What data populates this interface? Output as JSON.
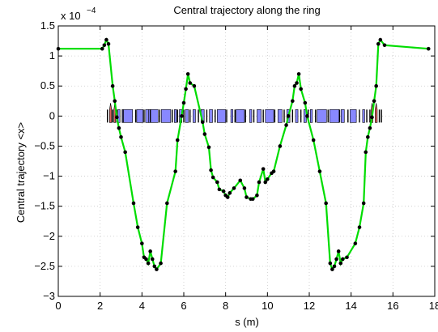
{
  "chart_data": {
    "type": "line",
    "title": "Central trajectory along the ring",
    "xlabel": "s (m)",
    "ylabel": "Central trajectory <x>",
    "y_multiplier_label": "x 10",
    "y_multiplier_exponent": "−4",
    "xlim": [
      0,
      18
    ],
    "ylim": [
      -3,
      1.5
    ],
    "grid": true,
    "x_ticks": [
      0,
      2,
      4,
      6,
      8,
      10,
      12,
      14,
      16,
      18
    ],
    "y_ticks": [
      -3,
      -2.5,
      -2,
      -1.5,
      -1,
      -0.5,
      0,
      0.5,
      1,
      1.5
    ],
    "x_tick_labels": [
      "0",
      "2",
      "4",
      "6",
      "8",
      "10",
      "12",
      "14",
      "16",
      "18"
    ],
    "y_tick_labels": [
      "−3",
      "−2.5",
      "−2",
      "−1.5",
      "−1",
      "−0.5",
      "0",
      "0.5",
      "1",
      "1.5"
    ],
    "series": [
      {
        "color": "#00dd00",
        "marker_color": "#000000",
        "x": [
          0.0,
          2.1,
          2.2,
          2.3,
          2.4,
          2.6,
          2.7,
          2.8,
          2.9,
          3.0,
          3.2,
          3.6,
          3.8,
          4.0,
          4.1,
          4.2,
          4.3,
          4.4,
          4.5,
          4.6,
          4.7,
          4.9,
          5.2,
          5.6,
          5.7,
          5.9,
          6.0,
          6.1,
          6.2,
          6.3,
          6.5,
          6.9,
          7.0,
          7.2,
          7.3,
          7.4,
          7.6,
          7.7,
          7.9,
          8.0,
          8.1,
          8.2,
          8.4,
          8.7,
          8.9,
          9.0,
          9.2,
          9.3,
          9.5,
          9.6,
          9.8,
          9.9,
          10.0,
          10.2,
          10.3,
          10.6,
          10.9,
          11.0,
          11.2,
          11.3,
          11.4,
          11.5,
          11.6,
          11.8,
          11.9,
          12.2,
          12.5,
          12.8,
          13.0,
          13.1,
          13.2,
          13.3,
          13.4,
          13.5,
          13.6,
          13.8,
          14.2,
          14.4,
          14.6,
          14.7,
          14.8,
          14.9,
          15.0,
          15.1,
          15.2,
          15.3,
          15.4,
          15.6,
          17.7
        ],
        "y": [
          1.12,
          1.12,
          1.18,
          1.27,
          1.2,
          0.5,
          0.25,
          -0.02,
          -0.2,
          -0.35,
          -0.6,
          -1.45,
          -1.85,
          -2.12,
          -2.35,
          -2.38,
          -2.45,
          -2.25,
          -2.38,
          -2.5,
          -2.55,
          -2.45,
          -1.45,
          -0.92,
          -0.4,
          0.0,
          0.22,
          0.45,
          0.7,
          0.55,
          0.5,
          -0.1,
          -0.3,
          -0.52,
          -0.9,
          -1.02,
          -1.1,
          -1.22,
          -1.25,
          -1.32,
          -1.35,
          -1.28,
          -1.2,
          -1.07,
          -1.2,
          -1.35,
          -1.38,
          -1.38,
          -1.32,
          -1.1,
          -0.88,
          -1.1,
          -1.05,
          -0.95,
          -0.92,
          -0.5,
          -0.15,
          0.0,
          0.25,
          0.5,
          0.55,
          0.7,
          0.45,
          0.22,
          0.0,
          -0.4,
          -0.92,
          -1.45,
          -2.45,
          -2.55,
          -2.5,
          -2.38,
          -2.25,
          -2.45,
          -2.38,
          -2.35,
          -2.12,
          -1.85,
          -1.45,
          -0.6,
          -0.35,
          -0.2,
          -0.02,
          0.25,
          0.5,
          1.2,
          1.27,
          1.18,
          1.12
        ]
      }
    ],
    "lattice_elements": [
      {
        "type": "magnet",
        "s": 2.5,
        "w": 0.1,
        "color": "#e06060"
      },
      {
        "type": "magnet",
        "s": 2.7,
        "w": 0.08,
        "color": "#e06060"
      },
      {
        "type": "quad",
        "s": 2.9,
        "w": 0.1,
        "color": "#8888ff"
      },
      {
        "type": "quad",
        "s": 3.3,
        "w": 0.5,
        "color": "#8888ff"
      },
      {
        "type": "quad",
        "s": 3.9,
        "w": 0.3,
        "color": "#8888ff"
      },
      {
        "type": "quad",
        "s": 4.25,
        "w": 0.15,
        "color": "#8888ff"
      },
      {
        "type": "quad",
        "s": 4.55,
        "w": 0.45,
        "color": "#8888ff"
      },
      {
        "type": "quad",
        "s": 5.15,
        "w": 0.45,
        "color": "#8888ff"
      },
      {
        "type": "quad",
        "s": 5.6,
        "w": 0.1,
        "color": "#8888ff"
      },
      {
        "type": "quad",
        "s": 5.85,
        "w": 0.12,
        "color": "#8888ff"
      },
      {
        "type": "quad",
        "s": 6.15,
        "w": 0.15,
        "color": "#8888ff"
      },
      {
        "type": "quad",
        "s": 6.5,
        "w": 0.12,
        "color": "#8888ff"
      },
      {
        "type": "quad",
        "s": 6.9,
        "w": 0.15,
        "color": "#8888ff"
      },
      {
        "type": "quad",
        "s": 7.3,
        "w": 0.15,
        "color": "#8888ff"
      },
      {
        "type": "quad",
        "s": 7.8,
        "w": 0.4,
        "color": "#8888ff"
      },
      {
        "type": "quad",
        "s": 8.3,
        "w": 0.1,
        "color": "#8888ff"
      },
      {
        "type": "quad",
        "s": 8.7,
        "w": 0.4,
        "color": "#8888ff"
      },
      {
        "type": "quad",
        "s": 9.2,
        "w": 0.1,
        "color": "#8888ff"
      },
      {
        "type": "quad",
        "s": 9.6,
        "w": 0.2,
        "color": "#8888ff"
      },
      {
        "type": "quad",
        "s": 10.1,
        "w": 0.4,
        "color": "#8888ff"
      },
      {
        "type": "quad",
        "s": 10.6,
        "w": 0.2,
        "color": "#8888ff"
      },
      {
        "type": "quad",
        "s": 11.0,
        "w": 0.15,
        "color": "#8888ff"
      },
      {
        "type": "quad",
        "s": 11.4,
        "w": 0.12,
        "color": "#8888ff"
      },
      {
        "type": "quad",
        "s": 11.8,
        "w": 0.12,
        "color": "#8888ff"
      },
      {
        "type": "quad",
        "s": 12.1,
        "w": 0.1,
        "color": "#8888ff"
      },
      {
        "type": "quad",
        "s": 12.6,
        "w": 0.45,
        "color": "#8888ff"
      },
      {
        "type": "quad",
        "s": 13.2,
        "w": 0.45,
        "color": "#8888ff"
      },
      {
        "type": "quad",
        "s": 13.6,
        "w": 0.15,
        "color": "#8888ff"
      },
      {
        "type": "quad",
        "s": 14.1,
        "w": 0.3,
        "color": "#8888ff"
      },
      {
        "type": "quad",
        "s": 14.6,
        "w": 0.1,
        "color": "#8888ff"
      },
      {
        "type": "magnet",
        "s": 15.0,
        "w": 0.08,
        "color": "#e06060"
      },
      {
        "type": "magnet",
        "s": 15.2,
        "w": 0.1,
        "color": "#e06060"
      },
      {
        "type": "marker",
        "s": 2.35
      },
      {
        "type": "marker",
        "s": 2.6
      },
      {
        "type": "marker",
        "s": 2.8
      },
      {
        "type": "marker",
        "s": 3.1
      },
      {
        "type": "marker",
        "s": 3.7
      },
      {
        "type": "marker",
        "s": 4.1
      },
      {
        "type": "marker",
        "s": 4.4
      },
      {
        "type": "marker",
        "s": 4.85
      },
      {
        "type": "marker",
        "s": 5.45
      },
      {
        "type": "marker",
        "s": 5.7
      },
      {
        "type": "marker",
        "s": 6.0
      },
      {
        "type": "marker",
        "s": 6.3
      },
      {
        "type": "marker",
        "s": 6.7
      },
      {
        "type": "marker",
        "s": 7.1
      },
      {
        "type": "marker",
        "s": 7.5
      },
      {
        "type": "marker",
        "s": 8.05
      },
      {
        "type": "marker",
        "s": 8.45
      },
      {
        "type": "marker",
        "s": 8.95
      },
      {
        "type": "marker",
        "s": 9.35
      },
      {
        "type": "marker",
        "s": 9.8
      },
      {
        "type": "marker",
        "s": 10.35
      },
      {
        "type": "marker",
        "s": 10.8
      },
      {
        "type": "marker",
        "s": 11.2
      },
      {
        "type": "marker",
        "s": 11.6
      },
      {
        "type": "marker",
        "s": 11.95
      },
      {
        "type": "marker",
        "s": 12.3
      },
      {
        "type": "marker",
        "s": 12.9
      },
      {
        "type": "marker",
        "s": 13.45
      },
      {
        "type": "marker",
        "s": 13.85
      },
      {
        "type": "marker",
        "s": 14.4
      },
      {
        "type": "marker",
        "s": 14.75
      },
      {
        "type": "marker",
        "s": 14.9
      },
      {
        "type": "marker",
        "s": 15.35
      },
      {
        "type": "marker",
        "s": 15.45
      }
    ]
  }
}
